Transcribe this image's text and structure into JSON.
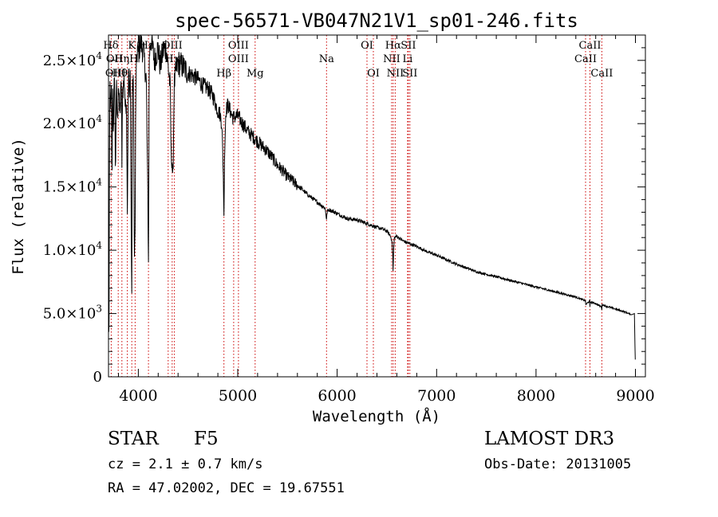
{
  "chart_data": {
    "type": "line",
    "title": "spec-56571-VB047N21V1_sp01-246.fits",
    "xlabel": "Wavelength (Å)",
    "ylabel": "Flux (relative)",
    "xlim": [
      3700,
      9100
    ],
    "ylim": [
      0,
      27000
    ],
    "x_ticks": [
      4000,
      5000,
      6000,
      7000,
      8000,
      9000
    ],
    "y_ticks": [
      {
        "value": 0,
        "mant": "0",
        "exp": ""
      },
      {
        "value": 5000,
        "mant": "5.0×10",
        "exp": "3"
      },
      {
        "value": 10000,
        "mant": "1.0×10",
        "exp": "4"
      },
      {
        "value": 15000,
        "mant": "1.5×10",
        "exp": "4"
      },
      {
        "value": 20000,
        "mant": "2.0×10",
        "exp": "4"
      },
      {
        "value": 25000,
        "mant": "2.5×10",
        "exp": "4"
      }
    ],
    "grid": false,
    "series": [
      {
        "name": "flux",
        "x": [
          3700,
          3705,
          3710,
          3715,
          3720,
          3730,
          3735,
          3740,
          3750,
          3760,
          3770,
          3780,
          3790,
          3800,
          3810,
          3820,
          3830,
          3835,
          3840,
          3850,
          3860,
          3870,
          3880,
          3890,
          3900,
          3910,
          3920,
          3930,
          3934,
          3940,
          3950,
          3960,
          3968,
          3975,
          3990,
          4000,
          4020,
          4050,
          4080,
          4095,
          4102,
          4110,
          4130,
          4160,
          4200,
          4220,
          4250,
          4280,
          4300,
          4320,
          4330,
          4340,
          4345,
          4350,
          4360,
          4380,
          4400,
          4450,
          4500,
          4550,
          4600,
          4650,
          4700,
          4750,
          4780,
          4800,
          4820,
          4840,
          4855,
          4861,
          4866,
          4880,
          4900,
          4950,
          5000,
          5050,
          5100,
          5150,
          5200,
          5250,
          5300,
          5350,
          5400,
          5450,
          5500,
          5550,
          5600,
          5650,
          5700,
          5750,
          5800,
          5850,
          5880,
          5893,
          5900,
          5920,
          6000,
          6100,
          6200,
          6300,
          6400,
          6450,
          6500,
          6530,
          6550,
          6560,
          6563,
          6566,
          6575,
          6600,
          6650,
          6700,
          6800,
          6900,
          7000,
          7200,
          7400,
          7600,
          7800,
          8000,
          8200,
          8400,
          8498,
          8500,
          8540,
          8542,
          8545,
          8600,
          8660,
          8662,
          8665,
          8700,
          8800,
          8900,
          8960,
          8990,
          8995,
          9000
        ],
        "values": [
          7800,
          800,
          18000,
          23000,
          21000,
          22500,
          14000,
          23500,
          19000,
          24500,
          16000,
          23000,
          20000,
          23500,
          21000,
          21500,
          23500,
          16000,
          22500,
          23000,
          23500,
          21000,
          22000,
          12500,
          24500,
          22000,
          24000,
          9500,
          6500,
          22000,
          24000,
          9000,
          12000,
          23000,
          26000,
          25500,
          26500,
          25800,
          23500,
          14500,
          9000,
          25500,
          26800,
          25000,
          26000,
          24500,
          25800,
          26000,
          24500,
          23000,
          17500,
          17000,
          15500,
          16500,
          23000,
          24200,
          24800,
          24500,
          24000,
          23800,
          23500,
          23000,
          22800,
          22200,
          21500,
          21000,
          20800,
          20000,
          16000,
          12500,
          17000,
          21000,
          21500,
          20500,
          20600,
          20000,
          19400,
          19000,
          18600,
          18200,
          17800,
          17300,
          16700,
          16300,
          15800,
          15500,
          15100,
          14800,
          14400,
          14100,
          13800,
          13500,
          13300,
          12400,
          13100,
          13200,
          12900,
          12500,
          12400,
          12100,
          11800,
          11700,
          11500,
          11200,
          10800,
          9500,
          7800,
          9800,
          11000,
          11100,
          10800,
          10600,
          10300,
          9900,
          9600,
          8900,
          8300,
          7900,
          7500,
          7100,
          6700,
          6300,
          6000,
          5700,
          6000,
          5500,
          5900,
          5800,
          5500,
          5300,
          5700,
          5600,
          5350,
          5100,
          4900,
          5000,
          2500,
          600
        ]
      }
    ],
    "lines": [
      {
        "name": "Hδ",
        "wl": 3700,
        "row": 0,
        "dx": 3
      },
      {
        "name": "K",
        "wl": 3934,
        "row": 0,
        "dx": 0
      },
      {
        "name": "Hε",
        "wl": 3970,
        "row": 0,
        "dx": 14
      },
      {
        "name": "OII",
        "wl": 3727,
        "row": 1,
        "dx": 4
      },
      {
        "name": "Hη",
        "wl": 3835,
        "row": 1,
        "dx": 0
      },
      {
        "name": "H",
        "wl": 3890,
        "row": 1,
        "dx": 8
      },
      {
        "name": "OII",
        "wl": 3727,
        "row": 2,
        "dx": 3
      },
      {
        "name": "Hθ",
        "wl": 3798,
        "row": 2,
        "dx": 2
      },
      {
        "name": "H",
        "wl": 3880,
        "row": 2,
        "dx": 0
      },
      {
        "name": "OIII",
        "wl": 4340,
        "row": 0,
        "dx": 0
      },
      {
        "name": "Hγ",
        "wl": 4340,
        "row": 1,
        "dx": 0
      },
      {
        "name": "Hβ",
        "wl": 4861,
        "row": 2,
        "dx": 0
      },
      {
        "name": "OIII",
        "wl": 5007,
        "row": 0,
        "dx": 0
      },
      {
        "name": "OIII",
        "wl": 4959,
        "row": 1,
        "dx": 6
      },
      {
        "name": "Mg",
        "wl": 5175,
        "row": 2,
        "dx": 0
      },
      {
        "name": "Na",
        "wl": 5893,
        "row": 1,
        "dx": 0
      },
      {
        "name": "OI",
        "wl": 6300,
        "row": 0,
        "dx": 0
      },
      {
        "name": "OI",
        "wl": 6364,
        "row": 2,
        "dx": 0
      },
      {
        "name": "Hα",
        "wl": 6563,
        "row": 0,
        "dx": 0
      },
      {
        "name": "SII",
        "wl": 6716,
        "row": 0,
        "dx": 0
      },
      {
        "name": "NII",
        "wl": 6548,
        "row": 1,
        "dx": 0
      },
      {
        "name": "Li",
        "wl": 6708,
        "row": 1,
        "dx": 0
      },
      {
        "name": "NII",
        "wl": 6584,
        "row": 2,
        "dx": 0
      },
      {
        "name": "SII",
        "wl": 6731,
        "row": 2,
        "dx": 0
      },
      {
        "name": "CaII",
        "wl": 8542,
        "row": 0,
        "dx": 0
      },
      {
        "name": "CaII",
        "wl": 8498,
        "row": 1,
        "dx": 0
      },
      {
        "name": "CaII",
        "wl": 8662,
        "row": 2,
        "dx": 0
      }
    ],
    "marker_lines": [
      3700,
      3727,
      3798,
      3835,
      3889,
      3934,
      3968,
      4102,
      4300,
      4340,
      4363,
      4861,
      4959,
      5007,
      5175,
      5893,
      6300,
      6364,
      6548,
      6563,
      6584,
      6708,
      6716,
      6731,
      8498,
      8542,
      8662
    ],
    "marker_color": "#cc0000"
  },
  "info": {
    "object": "STAR",
    "subclass": "F5",
    "survey": "LAMOST DR3",
    "cz": "cz = 2.1 ± 0.7 km/s",
    "obs_date": "Obs-Date: 20131005",
    "coords": "RA =  47.02002, DEC =  19.67551"
  }
}
